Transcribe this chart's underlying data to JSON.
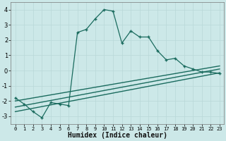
{
  "xlabel": "Humidex (Indice chaleur)",
  "bg_color": "#cce8e8",
  "line_color": "#1a6b5e",
  "grid_color": "#b8d8d8",
  "xlim": [
    -0.5,
    23.5
  ],
  "ylim": [
    -3.5,
    4.5
  ],
  "yticks": [
    -3,
    -2,
    -1,
    0,
    1,
    2,
    3,
    4
  ],
  "xticks": [
    0,
    1,
    2,
    3,
    4,
    5,
    6,
    7,
    8,
    9,
    10,
    11,
    12,
    13,
    14,
    15,
    16,
    17,
    18,
    19,
    20,
    21,
    22,
    23
  ],
  "main_x": [
    0,
    1,
    2,
    3,
    4,
    5,
    6,
    7,
    8,
    9,
    10,
    11,
    12,
    13,
    14,
    15,
    16,
    17,
    18,
    19,
    20,
    21,
    22,
    23
  ],
  "main_y": [
    -1.8,
    -2.2,
    -2.7,
    -3.1,
    -2.1,
    -2.2,
    -2.3,
    2.5,
    2.7,
    3.4,
    4.0,
    3.9,
    1.8,
    2.6,
    2.2,
    2.2,
    1.3,
    0.7,
    0.8,
    0.3,
    0.1,
    -0.1,
    -0.1,
    -0.2
  ],
  "line1_x": [
    0,
    23
  ],
  "line1_y": [
    -2.7,
    -0.15
  ],
  "line2_x": [
    0,
    23
  ],
  "line2_y": [
    -2.4,
    0.1
  ],
  "line3_x": [
    0,
    23
  ],
  "line3_y": [
    -2.0,
    0.3
  ]
}
